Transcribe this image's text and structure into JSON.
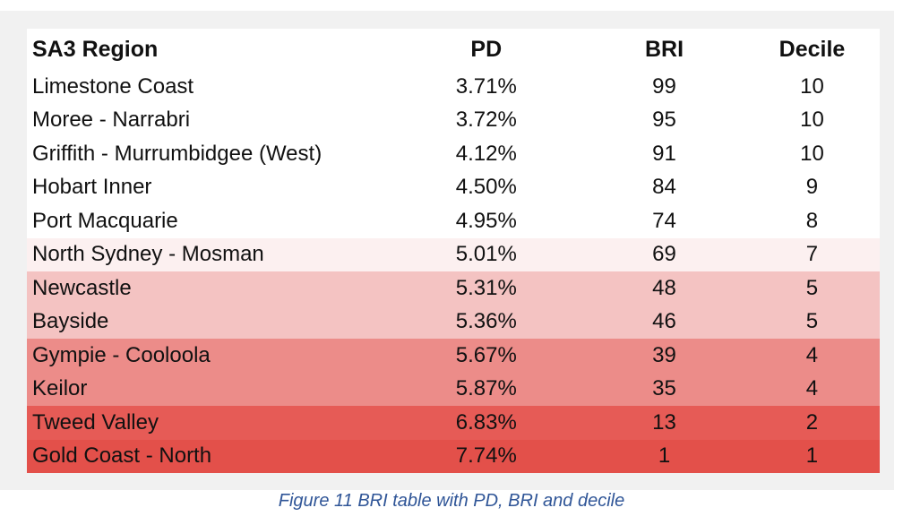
{
  "table": {
    "headers": {
      "region": "SA3 Region",
      "pd": "PD",
      "bri": "BRI",
      "decile": "Decile"
    },
    "rows": [
      {
        "region": "Limestone Coast",
        "pd": "3.71%",
        "bri": "99",
        "decile": "10",
        "bg": "#ffffff"
      },
      {
        "region": "Moree - Narrabri",
        "pd": "3.72%",
        "bri": "95",
        "decile": "10",
        "bg": "#ffffff"
      },
      {
        "region": "Griffith - Murrumbidgee (West)",
        "pd": "4.12%",
        "bri": "91",
        "decile": "10",
        "bg": "#ffffff"
      },
      {
        "region": "Hobart Inner",
        "pd": "4.50%",
        "bri": "84",
        "decile": "9",
        "bg": "#ffffff"
      },
      {
        "region": "Port Macquarie",
        "pd": "4.95%",
        "bri": "74",
        "decile": "8",
        "bg": "#ffffff"
      },
      {
        "region": "North Sydney - Mosman",
        "pd": "5.01%",
        "bri": "69",
        "decile": "7",
        "bg": "#fcf0f0"
      },
      {
        "region": "Newcastle",
        "pd": "5.31%",
        "bri": "48",
        "decile": "5",
        "bg": "#f4c3c2"
      },
      {
        "region": "Bayside",
        "pd": "5.36%",
        "bri": "46",
        "decile": "5",
        "bg": "#f4c3c2"
      },
      {
        "region": "Gympie - Cooloola",
        "pd": "5.67%",
        "bri": "39",
        "decile": "4",
        "bg": "#ec8c89"
      },
      {
        "region": "Keilor",
        "pd": "5.87%",
        "bri": "35",
        "decile": "4",
        "bg": "#ec8c89"
      },
      {
        "region": "Tweed Valley",
        "pd": "6.83%",
        "bri": "13",
        "decile": "2",
        "bg": "#e65b56"
      },
      {
        "region": "Gold Coast - North",
        "pd": "7.74%",
        "bri": "1",
        "decile": "1",
        "bg": "#e3504a"
      }
    ]
  },
  "caption": "Figure 11 BRI table with PD, BRI and decile"
}
